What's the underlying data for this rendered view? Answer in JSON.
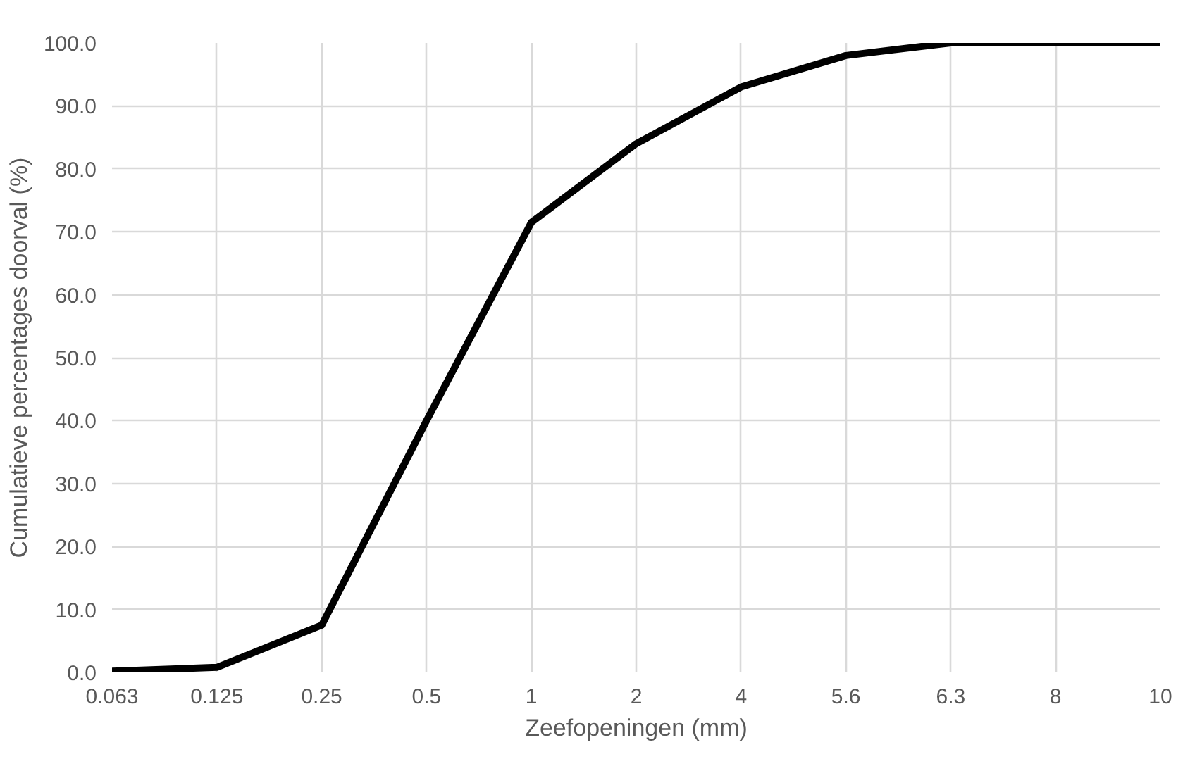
{
  "chart_data": {
    "type": "line",
    "xlabel": "Zeefopeningen (mm)",
    "ylabel": "Cumulatieve percentages doorval (%)",
    "categories": [
      "0.063",
      "0.125",
      "0.25",
      "0.5",
      "1",
      "2",
      "4",
      "5.6",
      "6.3",
      "8",
      "10"
    ],
    "series": [
      {
        "color": "#000000",
        "values": [
          0.2,
          0.8,
          7.5,
          40,
          71.5,
          84,
          93,
          98,
          100,
          100,
          100
        ]
      }
    ],
    "ylim": [
      0,
      100
    ],
    "yticks": [
      {
        "value": 0,
        "label": "0.0"
      },
      {
        "value": 10,
        "label": "10.0"
      },
      {
        "value": 20,
        "label": "20.0"
      },
      {
        "value": 30,
        "label": "30.0"
      },
      {
        "value": 40,
        "label": "40.0"
      },
      {
        "value": 50,
        "label": "50.0"
      },
      {
        "value": 60,
        "label": "60.0"
      },
      {
        "value": 70,
        "label": "70.0"
      },
      {
        "value": 80,
        "label": "80.0"
      },
      {
        "value": 90,
        "label": "90.0"
      },
      {
        "value": 100,
        "label": "100.0"
      }
    ],
    "grid": true,
    "line_style": "solid"
  }
}
